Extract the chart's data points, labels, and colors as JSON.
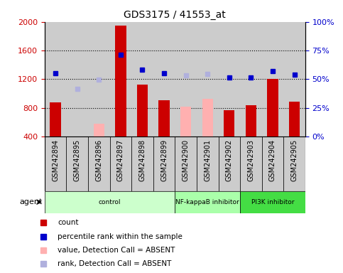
{
  "title": "GDS3175 / 41553_at",
  "samples": [
    "GSM242894",
    "GSM242895",
    "GSM242896",
    "GSM242897",
    "GSM242898",
    "GSM242899",
    "GSM242900",
    "GSM242901",
    "GSM242902",
    "GSM242903",
    "GSM242904",
    "GSM242905"
  ],
  "bar_values": [
    880,
    380,
    580,
    1950,
    1120,
    910,
    820,
    930,
    770,
    840,
    1200,
    890
  ],
  "bar_absent": [
    false,
    true,
    true,
    false,
    false,
    false,
    true,
    true,
    false,
    false,
    false,
    false
  ],
  "rank_values": [
    1280,
    null,
    null,
    1540,
    1330,
    1280,
    null,
    null,
    1225,
    1225,
    1310,
    1265
  ],
  "rank_absent_values": [
    null,
    1060,
    1190,
    null,
    null,
    null,
    1250,
    1270,
    null,
    null,
    null,
    null
  ],
  "bar_color_present": "#cc0000",
  "bar_color_absent": "#ffb0b0",
  "rank_color_present": "#0000cc",
  "rank_color_absent": "#b0b0dd",
  "ylim_left": [
    400,
    2000
  ],
  "ylim_right": [
    0,
    100
  ],
  "yticks_left": [
    400,
    800,
    1200,
    1600,
    2000
  ],
  "yticks_right": [
    0,
    25,
    50,
    75,
    100
  ],
  "grid_vals": [
    800,
    1200,
    1600
  ],
  "agent_groups": [
    {
      "label": "control",
      "start": 0,
      "end": 6,
      "color": "#ccffcc"
    },
    {
      "label": "NF-kappaB inhibitor",
      "start": 6,
      "end": 9,
      "color": "#aaffaa"
    },
    {
      "label": "PI3K inhibitor",
      "start": 9,
      "end": 12,
      "color": "#44dd44"
    }
  ],
  "legend_items": [
    {
      "label": "count",
      "color": "#cc0000"
    },
    {
      "label": "percentile rank within the sample",
      "color": "#0000cc"
    },
    {
      "label": "value, Detection Call = ABSENT",
      "color": "#ffb0b0"
    },
    {
      "label": "rank, Detection Call = ABSENT",
      "color": "#b0b0dd"
    }
  ],
  "left_tick_color": "#cc0000",
  "right_tick_color": "#0000cc",
  "bar_width": 0.5,
  "col_bg_color": "#cccccc",
  "plot_bg_color": "#ffffff"
}
